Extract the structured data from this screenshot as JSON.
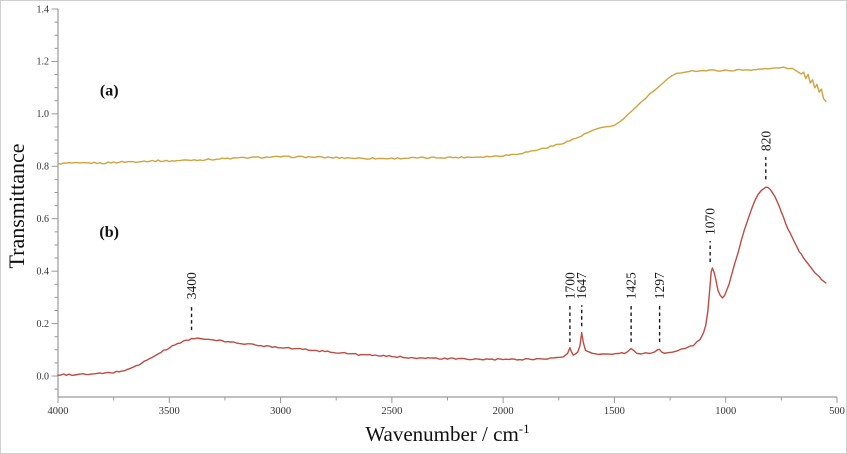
{
  "figure": {
    "background": "#ffffff",
    "xlabel_base": "Wavenumber / cm",
    "xlabel_sup": "-1",
    "ylabel": "Transmittance"
  },
  "chart_data": {
    "type": "line",
    "title": "",
    "xlabel": "Wavenumber / cm⁻¹",
    "ylabel": "Transmittance",
    "grid": false,
    "legend": "none",
    "axis_color": "#9a9a9a",
    "tick_label_color": "#333333",
    "annotation_color": "#1a1a1a",
    "x_axis": {
      "min": 500,
      "max": 4000,
      "reversed": true,
      "major_ticks": [
        4000,
        3500,
        3000,
        2500,
        2000,
        1500,
        1000,
        500
      ],
      "minor_tick_interval": 250
    },
    "y_axis": {
      "min": -0.08,
      "max": 1.4,
      "major_ticks": [
        0.0,
        0.2,
        0.4,
        0.6,
        0.8,
        1.0,
        1.2,
        1.4
      ],
      "minor_tick_interval": 0.05
    },
    "series": [
      {
        "name": "(a)",
        "color": "#D2A23C",
        "label_position": {
          "x": 3770,
          "y": 1.07
        },
        "points": [
          [
            4000,
            0.81
          ],
          [
            3950,
            0.812
          ],
          [
            3900,
            0.811
          ],
          [
            3850,
            0.813
          ],
          [
            3800,
            0.812
          ],
          [
            3750,
            0.815
          ],
          [
            3700,
            0.817
          ],
          [
            3650,
            0.818
          ],
          [
            3600,
            0.82
          ],
          [
            3550,
            0.821
          ],
          [
            3500,
            0.82
          ],
          [
            3450,
            0.822
          ],
          [
            3400,
            0.824
          ],
          [
            3350,
            0.825
          ],
          [
            3300,
            0.827
          ],
          [
            3250,
            0.829
          ],
          [
            3200,
            0.831
          ],
          [
            3150,
            0.833
          ],
          [
            3100,
            0.834
          ],
          [
            3050,
            0.835
          ],
          [
            3000,
            0.836
          ],
          [
            2950,
            0.836
          ],
          [
            2900,
            0.836
          ],
          [
            2850,
            0.835
          ],
          [
            2800,
            0.834
          ],
          [
            2750,
            0.833
          ],
          [
            2700,
            0.832
          ],
          [
            2650,
            0.831
          ],
          [
            2600,
            0.83
          ],
          [
            2550,
            0.83
          ],
          [
            2500,
            0.83
          ],
          [
            2450,
            0.831
          ],
          [
            2400,
            0.832
          ],
          [
            2350,
            0.832
          ],
          [
            2300,
            0.833
          ],
          [
            2250,
            0.834
          ],
          [
            2200,
            0.834
          ],
          [
            2150,
            0.835
          ],
          [
            2100,
            0.836
          ],
          [
            2050,
            0.838
          ],
          [
            2000,
            0.841
          ],
          [
            1950,
            0.846
          ],
          [
            1900,
            0.853
          ],
          [
            1850,
            0.862
          ],
          [
            1800,
            0.872
          ],
          [
            1750,
            0.884
          ],
          [
            1700,
            0.898
          ],
          [
            1650,
            0.915
          ],
          [
            1620,
            0.928
          ],
          [
            1600,
            0.936
          ],
          [
            1580,
            0.942
          ],
          [
            1560,
            0.946
          ],
          [
            1540,
            0.948
          ],
          [
            1520,
            0.95
          ],
          [
            1500,
            0.956
          ],
          [
            1480,
            0.968
          ],
          [
            1460,
            0.982
          ],
          [
            1440,
            0.996
          ],
          [
            1420,
            1.012
          ],
          [
            1400,
            1.028
          ],
          [
            1380,
            1.044
          ],
          [
            1360,
            1.06
          ],
          [
            1340,
            1.075
          ],
          [
            1320,
            1.09
          ],
          [
            1300,
            1.104
          ],
          [
            1280,
            1.118
          ],
          [
            1260,
            1.132
          ],
          [
            1240,
            1.144
          ],
          [
            1220,
            1.153
          ],
          [
            1200,
            1.158
          ],
          [
            1180,
            1.162
          ],
          [
            1150,
            1.164
          ],
          [
            1100,
            1.165
          ],
          [
            1050,
            1.166
          ],
          [
            1000,
            1.165
          ],
          [
            950,
            1.167
          ],
          [
            900,
            1.168
          ],
          [
            850,
            1.17
          ],
          [
            800,
            1.172
          ],
          [
            780,
            1.175
          ],
          [
            760,
            1.177
          ],
          [
            740,
            1.176
          ],
          [
            720,
            1.174
          ],
          [
            700,
            1.172
          ],
          [
            680,
            1.165
          ],
          [
            660,
            1.15
          ],
          [
            650,
            1.158
          ],
          [
            640,
            1.135
          ],
          [
            630,
            1.148
          ],
          [
            620,
            1.12
          ],
          [
            610,
            1.133
          ],
          [
            600,
            1.1
          ],
          [
            590,
            1.112
          ],
          [
            580,
            1.085
          ],
          [
            570,
            1.095
          ],
          [
            560,
            1.06
          ],
          [
            550,
            1.048
          ]
        ]
      },
      {
        "name": "(b)",
        "color": "#C04B42",
        "label_position": {
          "x": 3770,
          "y": 0.53
        },
        "points": [
          [
            4000,
            0.005
          ],
          [
            3950,
            0.005
          ],
          [
            3900,
            0.006
          ],
          [
            3850,
            0.007
          ],
          [
            3800,
            0.01
          ],
          [
            3750,
            0.014
          ],
          [
            3700,
            0.022
          ],
          [
            3650,
            0.038
          ],
          [
            3600,
            0.06
          ],
          [
            3550,
            0.085
          ],
          [
            3500,
            0.108
          ],
          [
            3450,
            0.128
          ],
          [
            3400,
            0.143
          ],
          [
            3350,
            0.142
          ],
          [
            3300,
            0.137
          ],
          [
            3250,
            0.132
          ],
          [
            3200,
            0.127
          ],
          [
            3150,
            0.122
          ],
          [
            3100,
            0.117
          ],
          [
            3050,
            0.113
          ],
          [
            3000,
            0.11
          ],
          [
            2950,
            0.106
          ],
          [
            2900,
            0.102
          ],
          [
            2850,
            0.098
          ],
          [
            2800,
            0.094
          ],
          [
            2750,
            0.09
          ],
          [
            2700,
            0.086
          ],
          [
            2650,
            0.082
          ],
          [
            2600,
            0.079
          ],
          [
            2550,
            0.077
          ],
          [
            2500,
            0.075
          ],
          [
            2450,
            0.072
          ],
          [
            2400,
            0.07
          ],
          [
            2350,
            0.068
          ],
          [
            2300,
            0.067
          ],
          [
            2250,
            0.066
          ],
          [
            2200,
            0.065
          ],
          [
            2150,
            0.064
          ],
          [
            2100,
            0.064
          ],
          [
            2050,
            0.063
          ],
          [
            2000,
            0.063
          ],
          [
            1950,
            0.063
          ],
          [
            1900,
            0.064
          ],
          [
            1850,
            0.065
          ],
          [
            1800,
            0.067
          ],
          [
            1760,
            0.07
          ],
          [
            1730,
            0.075
          ],
          [
            1710,
            0.088
          ],
          [
            1700,
            0.105
          ],
          [
            1693,
            0.09
          ],
          [
            1685,
            0.082
          ],
          [
            1675,
            0.083
          ],
          [
            1665,
            0.09
          ],
          [
            1655,
            0.115
          ],
          [
            1647,
            0.163
          ],
          [
            1640,
            0.13
          ],
          [
            1630,
            0.1
          ],
          [
            1615,
            0.09
          ],
          [
            1600,
            0.087
          ],
          [
            1570,
            0.085
          ],
          [
            1540,
            0.084
          ],
          [
            1510,
            0.084
          ],
          [
            1480,
            0.085
          ],
          [
            1455,
            0.088
          ],
          [
            1440,
            0.094
          ],
          [
            1425,
            0.104
          ],
          [
            1412,
            0.094
          ],
          [
            1400,
            0.088
          ],
          [
            1380,
            0.086
          ],
          [
            1360,
            0.086
          ],
          [
            1340,
            0.088
          ],
          [
            1320,
            0.092
          ],
          [
            1305,
            0.098
          ],
          [
            1297,
            0.101
          ],
          [
            1288,
            0.094
          ],
          [
            1275,
            0.089
          ],
          [
            1260,
            0.088
          ],
          [
            1240,
            0.09
          ],
          [
            1220,
            0.094
          ],
          [
            1200,
            0.1
          ],
          [
            1180,
            0.106
          ],
          [
            1160,
            0.112
          ],
          [
            1145,
            0.118
          ],
          [
            1130,
            0.128
          ],
          [
            1115,
            0.142
          ],
          [
            1100,
            0.165
          ],
          [
            1090,
            0.195
          ],
          [
            1080,
            0.25
          ],
          [
            1072,
            0.33
          ],
          [
            1065,
            0.395
          ],
          [
            1060,
            0.41
          ],
          [
            1052,
            0.398
          ],
          [
            1045,
            0.37
          ],
          [
            1035,
            0.33
          ],
          [
            1025,
            0.308
          ],
          [
            1015,
            0.3
          ],
          [
            1005,
            0.308
          ],
          [
            995,
            0.325
          ],
          [
            985,
            0.35
          ],
          [
            975,
            0.38
          ],
          [
            960,
            0.425
          ],
          [
            945,
            0.47
          ],
          [
            930,
            0.515
          ],
          [
            915,
            0.558
          ],
          [
            900,
            0.598
          ],
          [
            885,
            0.635
          ],
          [
            870,
            0.665
          ],
          [
            855,
            0.69
          ],
          [
            840,
            0.708
          ],
          [
            830,
            0.716
          ],
          [
            820,
            0.722
          ],
          [
            810,
            0.72
          ],
          [
            800,
            0.712
          ],
          [
            790,
            0.7
          ],
          [
            780,
            0.684
          ],
          [
            770,
            0.666
          ],
          [
            760,
            0.646
          ],
          [
            750,
            0.625
          ],
          [
            740,
            0.603
          ],
          [
            730,
            0.582
          ],
          [
            720,
            0.562
          ],
          [
            710,
            0.543
          ],
          [
            700,
            0.525
          ],
          [
            690,
            0.508
          ],
          [
            680,
            0.492
          ],
          [
            670,
            0.477
          ],
          [
            660,
            0.463
          ],
          [
            650,
            0.45
          ],
          [
            640,
            0.438
          ],
          [
            630,
            0.427
          ],
          [
            620,
            0.416
          ],
          [
            610,
            0.406
          ],
          [
            600,
            0.396
          ],
          [
            590,
            0.387
          ],
          [
            580,
            0.378
          ],
          [
            570,
            0.37
          ],
          [
            560,
            0.362
          ],
          [
            550,
            0.355
          ]
        ]
      }
    ],
    "annotations": [
      {
        "label": "3400",
        "x": 3400,
        "line_bottom": 0.175,
        "line_top": 0.27
      },
      {
        "label": "1700",
        "x": 1700,
        "line_bottom": 0.13,
        "line_top": 0.27
      },
      {
        "label": "1647",
        "x": 1647,
        "line_bottom": 0.19,
        "line_top": 0.27
      },
      {
        "label": "1425",
        "x": 1425,
        "line_bottom": 0.13,
        "line_top": 0.27
      },
      {
        "label": "1297",
        "x": 1297,
        "line_bottom": 0.13,
        "line_top": 0.27
      },
      {
        "label": "1070",
        "x": 1070,
        "line_bottom": 0.435,
        "line_top": 0.515
      },
      {
        "label": "820",
        "x": 820,
        "line_bottom": 0.75,
        "line_top": 0.835
      }
    ]
  }
}
